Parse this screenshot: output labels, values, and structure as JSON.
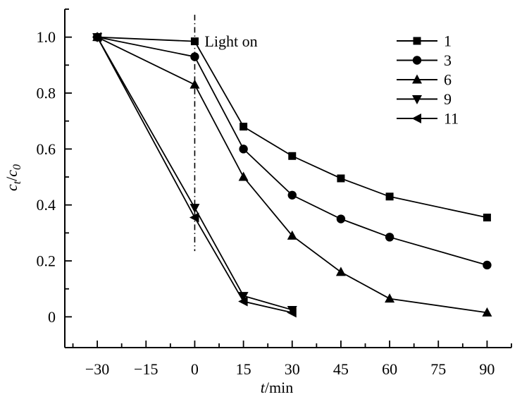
{
  "figure": {
    "background": "#ffffff",
    "ink_color": "#000000"
  },
  "chart_data": {
    "type": "line",
    "title": "",
    "xlabel": "t/min",
    "xlabel_italic": "t",
    "xlabel_rest": "/min",
    "ylabel": "ct/c0",
    "ylabel_parts": {
      "base1": "c",
      "sub1": "t",
      "separator": "/",
      "base2": "c",
      "sub2": "0"
    },
    "xlim": [
      -40,
      97.5
    ],
    "ylim": [
      -0.11,
      1.1
    ],
    "grid": false,
    "x_ticks_major": [
      -30,
      -15,
      0,
      15,
      30,
      45,
      60,
      75,
      90
    ],
    "x_tick_labels": [
      "−30",
      "−15",
      "0",
      "15",
      "30",
      "45",
      "60",
      "75",
      "90"
    ],
    "x_ticks_minor": [
      -37.5,
      -22.5,
      -7.5,
      7.5,
      22.5,
      37.5,
      52.5,
      67.5,
      82.5,
      97.5
    ],
    "y_ticks_major": [
      0,
      0.2,
      0.4,
      0.6,
      0.8,
      1.0
    ],
    "y_tick_labels": [
      "0",
      "0.2",
      "0.4",
      "0.6",
      "0.8",
      "1.0"
    ],
    "y_ticks_minor": [
      0.1,
      0.3,
      0.5,
      0.7,
      0.9,
      1.1
    ],
    "annotation": {
      "text": "Light on",
      "x": 0,
      "line_style": "dash-dot",
      "line_y_top": 1.08,
      "line_y_bottom": 0.235
    },
    "legend": {
      "position": "top-right",
      "frame": false
    },
    "series": [
      {
        "name": "1",
        "marker": "square",
        "color": "#000000",
        "x": [
          -30,
          0,
          15,
          30,
          45,
          60,
          90
        ],
        "y": [
          1.0,
          0.985,
          0.68,
          0.575,
          0.495,
          0.43,
          0.355
        ]
      },
      {
        "name": "3",
        "marker": "circle",
        "color": "#000000",
        "x": [
          -30,
          0,
          15,
          30,
          45,
          60,
          90
        ],
        "y": [
          1.0,
          0.93,
          0.6,
          0.435,
          0.35,
          0.285,
          0.185
        ]
      },
      {
        "name": "6",
        "marker": "triangle-up",
        "color": "#000000",
        "x": [
          -30,
          0,
          15,
          30,
          45,
          60,
          90
        ],
        "y": [
          1.0,
          0.83,
          0.5,
          0.29,
          0.16,
          0.065,
          0.015
        ]
      },
      {
        "name": "9",
        "marker": "triangle-down",
        "color": "#000000",
        "x": [
          -30,
          0,
          15,
          30
        ],
        "y": [
          1.0,
          0.39,
          0.075,
          0.025
        ]
      },
      {
        "name": "11",
        "marker": "triangle-left",
        "color": "#000000",
        "x": [
          -30,
          0,
          15,
          30
        ],
        "y": [
          1.0,
          0.355,
          0.055,
          0.015
        ]
      }
    ]
  }
}
